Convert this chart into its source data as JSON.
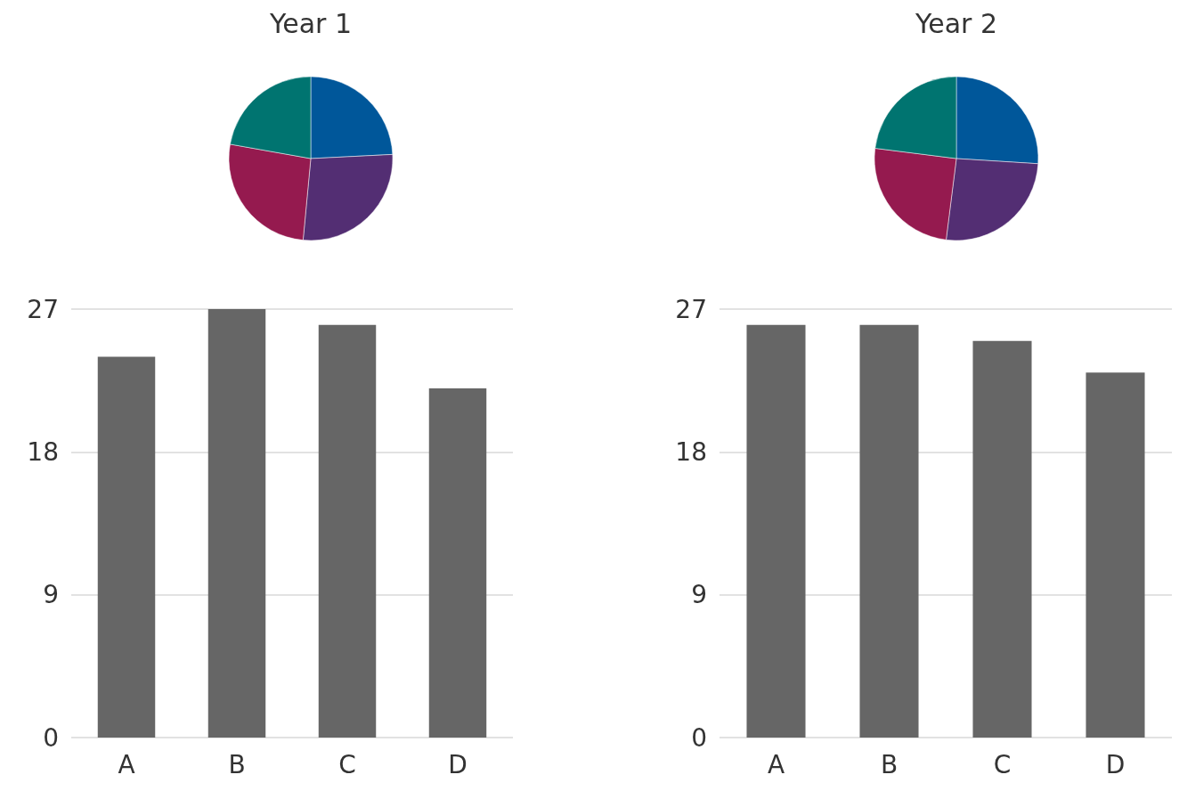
{
  "chart_data": [
    {
      "type": "pie",
      "title": "Year 1",
      "categories": [
        null,
        null,
        null,
        null
      ],
      "values": [
        24.2,
        27.3,
        26.3,
        22.2
      ],
      "colors": [
        "#00579a",
        "#532e73",
        "#951a4f",
        "#007470"
      ]
    },
    {
      "type": "pie",
      "title": "Year 2",
      "categories": [
        null,
        null,
        null,
        null
      ],
      "values": [
        26,
        26,
        25,
        23
      ],
      "colors": [
        "#00579a",
        "#532e73",
        "#951a4f",
        "#007470"
      ]
    },
    {
      "type": "bar",
      "categories": [
        "A",
        "B",
        "C",
        "D"
      ],
      "values": [
        24,
        27,
        26,
        22
      ],
      "color": "#666666",
      "ylim": [
        0,
        27
      ],
      "yticks": [
        0,
        9,
        18,
        27
      ],
      "grid": "y"
    },
    {
      "type": "bar",
      "categories": [
        "A",
        "B",
        "C",
        "D"
      ],
      "values": [
        26,
        26,
        25,
        23
      ],
      "color": "#666666",
      "ylim": [
        0,
        27
      ],
      "yticks": [
        0,
        9,
        18,
        27
      ],
      "grid": "y"
    }
  ]
}
